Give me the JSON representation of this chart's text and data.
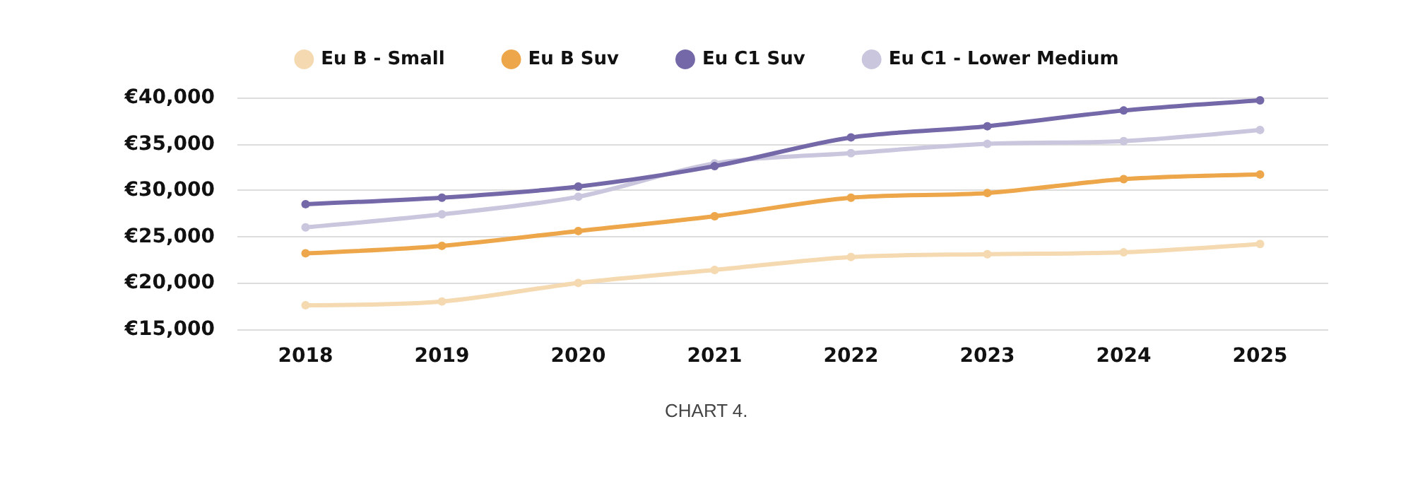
{
  "chart_data": {
    "type": "line",
    "categories": [
      "2018",
      "2019",
      "2020",
      "2021",
      "2022",
      "2023",
      "2024",
      "2025"
    ],
    "series": [
      {
        "name": "Eu B - Small",
        "color": "#f5d9b0",
        "values": [
          17600,
          18000,
          20000,
          21400,
          22800,
          23100,
          23300,
          24200
        ]
      },
      {
        "name": "Eu B Suv",
        "color": "#eda74a",
        "values": [
          23200,
          24000,
          25600,
          27200,
          29200,
          29700,
          31200,
          31700
        ]
      },
      {
        "name": "Eu C1 Suv",
        "color": "#7468a8",
        "values": [
          28500,
          29200,
          30400,
          32600,
          35700,
          36900,
          38600,
          39700
        ]
      },
      {
        "name": "Eu C1 - Lower Medium",
        "color": "#c9c6de",
        "values": [
          26000,
          27400,
          29300,
          32900,
          34000,
          35000,
          35300,
          36500
        ]
      }
    ],
    "ylim": [
      15000,
      40000
    ],
    "yticks": [
      {
        "value": 15000,
        "label": "€15,000"
      },
      {
        "value": 20000,
        "label": "€20,000"
      },
      {
        "value": 25000,
        "label": "€25,000"
      },
      {
        "value": 30000,
        "label": "€30,000"
      },
      {
        "value": 35000,
        "label": "€35,000"
      },
      {
        "value": 40000,
        "label": "€40,000"
      }
    ],
    "grid": "y",
    "legend": "top",
    "marker": "circle",
    "line_style": "solid",
    "annotations": [
      "CHART 4."
    ]
  }
}
